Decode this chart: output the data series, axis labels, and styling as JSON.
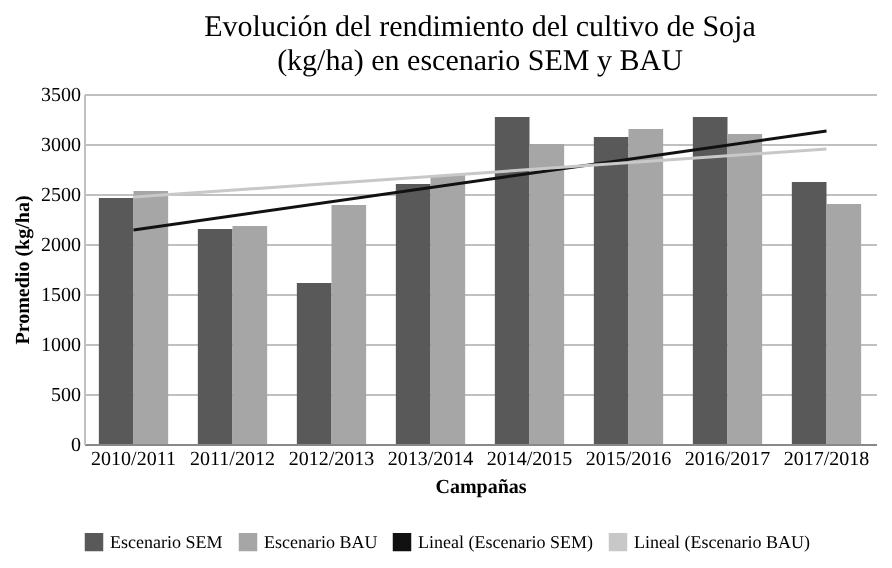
{
  "chart_data": {
    "type": "bar",
    "title": "Evolución del rendimiento del cultivo de Soja\n(kg/ha) en escenario SEM y BAU",
    "xlabel": "Campañas",
    "ylabel": "Promedio (kg/ha)",
    "categories": [
      "2010/2011",
      "2011/2012",
      "2012/2013",
      "2013/2014",
      "2014/2015",
      "2015/2016",
      "2016/2017",
      "2017/2018"
    ],
    "series": [
      {
        "name": "Escenario SEM",
        "color": "#595959",
        "values": [
          2460,
          2150,
          1610,
          2600,
          3270,
          3070,
          3270,
          2620
        ]
      },
      {
        "name": "Escenario BAU",
        "color": "#a6a6a6",
        "values": [
          2530,
          2180,
          2390,
          2690,
          3000,
          3150,
          3100,
          2400
        ]
      },
      {
        "name": "Lineal (Escenario SEM)",
        "type": "line",
        "color": "#111111",
        "x": [
          "2010/2011",
          "2017/2018"
        ],
        "values": [
          2140,
          3130
        ]
      },
      {
        "name": "Lineal (Escenario BAU)",
        "type": "line",
        "color": "#c8c8c8",
        "x": [
          "2010/2011",
          "2017/2018"
        ],
        "values": [
          2470,
          2950
        ]
      }
    ],
    "ylim": [
      0,
      3500
    ],
    "yticks": [
      0,
      500,
      1000,
      1500,
      2000,
      2500,
      3000,
      3500
    ],
    "grid": "y",
    "legend": "bottom"
  }
}
